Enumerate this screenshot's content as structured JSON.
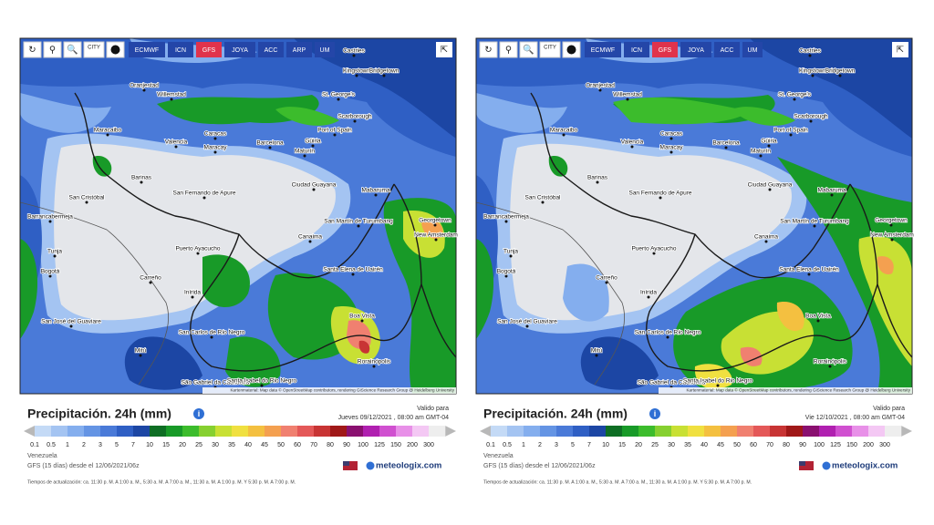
{
  "panels": [
    {
      "toolbar": [
        "CITY",
        "ECMWF",
        "ICN",
        "GFS",
        "JOYA",
        "ACC",
        "ARP",
        "UM"
      ],
      "map_labels": [
        "Castries",
        "Kingstown",
        "Bridgetown",
        "Oranjestad",
        "Willemstad",
        "St. George's",
        "Scarborough",
        "Maracaibo",
        "Port of Spain",
        "Valencia",
        "Caracas",
        "Maracay",
        "Barcelona",
        "Güiria",
        "Maturín",
        "Ciudad Guayana",
        "Barinas",
        "San Cristóbal",
        "San Fernando de Apure",
        "Mabaruma",
        "Barrancabermeja",
        "Georgetown",
        "New Amsterdam",
        "San Martín de Turumbang",
        "Tunja",
        "Puerto Ayacucho",
        "Canaima",
        "Bogotá",
        "Santa Elena de Uairén",
        "Carreño",
        "Boa Vista",
        "Inírida",
        "San José del Guaviare",
        "San Carlos de Río Negro",
        "Mitú",
        "Rorainópolis",
        "São Gabriel da Cachoeira",
        "Santa Isabel do Rio Negro"
      ],
      "attribution": "Kartenmaterial: Map data © OpenStreetMap contributors, rendering GIScience Research Group @ Heidelberg University",
      "legend": {
        "title": "Precipitación. 24h (mm)",
        "valid_label": "Valido para",
        "valid_date": "Jueves 09/12/2021 , 08:00 am GMT-04",
        "scale": [
          {
            "label": 0.1,
            "color": "#c4daf6"
          },
          {
            "label": 0.5,
            "color": "#a4c4f2"
          },
          {
            "label": 1,
            "color": "#84aeee"
          },
          {
            "label": 2,
            "color": "#6494e4"
          },
          {
            "label": 3,
            "color": "#4a7ad8"
          },
          {
            "label": 5,
            "color": "#2f5fc4"
          },
          {
            "label": 7,
            "color": "#1c46a4"
          },
          {
            "label": 10,
            "color": "#0e6e24"
          },
          {
            "label": 15,
            "color": "#189a28"
          },
          {
            "label": 20,
            "color": "#3cbc2c"
          },
          {
            "label": 25,
            "color": "#86d030"
          },
          {
            "label": 30,
            "color": "#c8e034"
          },
          {
            "label": 35,
            "color": "#f0e040"
          },
          {
            "label": 40,
            "color": "#f4c040"
          },
          {
            "label": 45,
            "color": "#f4a050"
          },
          {
            "label": 50,
            "color": "#f08070"
          },
          {
            "label": 60,
            "color": "#e45858"
          },
          {
            "label": 70,
            "color": "#c83434"
          },
          {
            "label": 80,
            "color": "#a01818"
          },
          {
            "label": 90,
            "color": "#8a1070"
          },
          {
            "label": 100,
            "color": "#b020b0"
          },
          {
            "label": 125,
            "color": "#d050d0"
          },
          {
            "label": 150,
            "color": "#e890e8"
          },
          {
            "label": 200,
            "color": "#f4c8f4"
          },
          {
            "label": 300,
            "color": "#eeeeee"
          }
        ],
        "region": "Venezuela",
        "model": "GFS (15 días) desde el 12/06/2021/06z",
        "brand": "meteologix.com",
        "updates": "Tiempos de actualización: ca. 11:30 p. M. A 1:00 a. M., 5:30 a. M. A 7:00 a. M., 11:30 a. M. A 1:00 p. M. Y 5:30 p. M. A 7:00 p. M."
      }
    },
    {
      "toolbar": [
        "CITY",
        "ECMWF",
        "ICN",
        "GFS",
        "JOYA",
        "ACC",
        "UM"
      ],
      "map_labels": [
        "Castries",
        "Kingstown",
        "Bridgetown",
        "Oranjestad",
        "Willemstad",
        "St. George's",
        "Scarborough",
        "Maracaibo",
        "Port of Spain",
        "Valencia",
        "Caracas",
        "Maracay",
        "Barcelona",
        "Güiria",
        "Maturín",
        "Ciudad Guayana",
        "Barinas",
        "San Cristóbal",
        "San Fernando de Apure",
        "Mabaruma",
        "Barrancabermeja",
        "Georgetown",
        "New Amsterdam",
        "San Martín de Turumbang",
        "Tunja",
        "Puerto Ayacucho",
        "Canaima",
        "Bogotá",
        "Santa Elena de Uairén",
        "Carreño",
        "Boa Vista",
        "Inírida",
        "San José del Guaviare",
        "San Carlos de Río Negro",
        "Mitú",
        "Rorainópolis",
        "São Gabriel da Cachoeira",
        "Santa Isabel do Rio Negro"
      ],
      "attribution": "Kartenmaterial: Map data © OpenStreetMap contributors, rendering GIScience Research Group @ Heidelberg University",
      "legend": {
        "title": "Precipitación. 24h (mm)",
        "valid_label": "Valido para",
        "valid_date": "Vie 12/10/2021 , 08:00 am GMT-04",
        "scale": [
          {
            "label": 0.1,
            "color": "#c4daf6"
          },
          {
            "label": 0.5,
            "color": "#a4c4f2"
          },
          {
            "label": 1,
            "color": "#84aeee"
          },
          {
            "label": 2,
            "color": "#6494e4"
          },
          {
            "label": 3,
            "color": "#4a7ad8"
          },
          {
            "label": 5,
            "color": "#2f5fc4"
          },
          {
            "label": 7,
            "color": "#1c46a4"
          },
          {
            "label": 10,
            "color": "#0e6e24"
          },
          {
            "label": 15,
            "color": "#189a28"
          },
          {
            "label": 20,
            "color": "#3cbc2c"
          },
          {
            "label": 25,
            "color": "#86d030"
          },
          {
            "label": 30,
            "color": "#c8e034"
          },
          {
            "label": 35,
            "color": "#f0e040"
          },
          {
            "label": 40,
            "color": "#f4c040"
          },
          {
            "label": 45,
            "color": "#f4a050"
          },
          {
            "label": 50,
            "color": "#f08070"
          },
          {
            "label": 60,
            "color": "#e45858"
          },
          {
            "label": 70,
            "color": "#c83434"
          },
          {
            "label": 80,
            "color": "#a01818"
          },
          {
            "label": 90,
            "color": "#8a1070"
          },
          {
            "label": 100,
            "color": "#b020b0"
          },
          {
            "label": 125,
            "color": "#d050d0"
          },
          {
            "label": 150,
            "color": "#e890e8"
          },
          {
            "label": 200,
            "color": "#f4c8f4"
          },
          {
            "label": 300,
            "color": "#eeeeee"
          }
        ],
        "region": "Venezuela",
        "model": "GFS (15 días) desde el 12/06/2021/06z",
        "brand": "meteologix.com",
        "updates": "Tiempos de actualización: ca. 11:30 p. M. A 1:00 a. M., 5:30 a. M. A 7:00 a. M., 11:30 a. M. A 1:00 p. M. Y 5:30 p. M. A 7:00 p. M."
      }
    }
  ]
}
